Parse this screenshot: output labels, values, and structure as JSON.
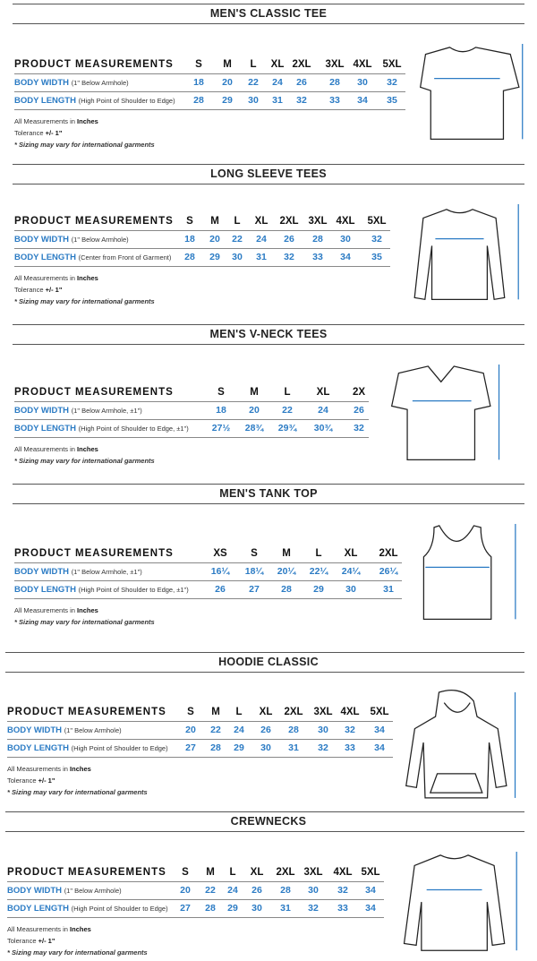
{
  "sections": [
    {
      "title": "MEN'S CLASSIC TEE",
      "garment": "tee-icon",
      "header": "PRODUCT MEASUREMENTS",
      "sizes": [
        "S",
        "M",
        "L",
        "XL",
        "2XL",
        "3XL",
        "4XL",
        "5XL"
      ],
      "rows": [
        {
          "label": "BODY WIDTH",
          "note": "(1\" Below Armhole)",
          "values": [
            "18",
            "20",
            "22",
            "24",
            "26",
            "28",
            "30",
            "32"
          ]
        },
        {
          "label": "BODY LENGTH",
          "note": "(High Point of Shoulder to Edge)",
          "values": [
            "28",
            "29",
            "30",
            "31",
            "32",
            "33",
            "34",
            "35"
          ]
        }
      ],
      "units_prefix": "All Measurements in",
      "units": "Inches",
      "tolerance_prefix": "Tolerance",
      "tolerance": "+/- 1\"",
      "disclaimer": "* Sizing may vary for international garments"
    },
    {
      "title": "LONG SLEEVE TEES",
      "garment": "long-sleeve-icon",
      "header": "PRODUCT MEASUREMENTS",
      "sizes": [
        "S",
        "M",
        "L",
        "XL",
        "2XL",
        "3XL",
        "4XL",
        "5XL"
      ],
      "rows": [
        {
          "label": "BODY WIDTH",
          "note": "(1\" Below Armhole)",
          "values": [
            "18",
            "20",
            "22",
            "24",
            "26",
            "28",
            "30",
            "32"
          ]
        },
        {
          "label": "BODY LENGTH",
          "note": "(Center from Front of Garment)",
          "values": [
            "28",
            "29",
            "30",
            "31",
            "32",
            "33",
            "34",
            "35"
          ]
        }
      ],
      "units_prefix": "All Measurements in",
      "units": "Inches",
      "tolerance_prefix": "Tolerance",
      "tolerance": "+/- 1\"",
      "disclaimer": "* Sizing may vary for international garments"
    },
    {
      "title": "MEN'S V-NECK TEES",
      "garment": "vneck-icon",
      "header": "PRODUCT MEASUREMENTS",
      "sizes": [
        "S",
        "M",
        "L",
        "XL",
        "2X"
      ],
      "rows": [
        {
          "label": "BODY WIDTH",
          "note": "(1\" Below Armhole, ±1\")",
          "values": [
            "18",
            "20",
            "22",
            "24",
            "26"
          ]
        },
        {
          "label": "BODY LENGTH",
          "note": "(High Point of Shoulder to Edge, ±1\")",
          "values": [
            "27½",
            "28¾",
            "29¾",
            "30¾",
            "32"
          ]
        }
      ],
      "units_prefix": "All Measurements in",
      "units": "Inches",
      "disclaimer": "* Sizing may vary for international garments"
    },
    {
      "title": "MEN'S TANK TOP",
      "garment": "tank-icon",
      "header": "PRODUCT MEASUREMENTS",
      "sizes": [
        "XS",
        "S",
        "M",
        "L",
        "XL",
        "2XL"
      ],
      "rows": [
        {
          "label": "BODY WIDTH",
          "note": "(1\" Below Armhole, ±1\")",
          "values": [
            "16¼",
            "18¼",
            "20¼",
            "22¼",
            "24¼",
            "26¼"
          ]
        },
        {
          "label": "BODY LENGTH",
          "note": "(High Point of Shoulder to Edge, ±1\")",
          "values": [
            "26",
            "27",
            "28",
            "29",
            "30",
            "31"
          ]
        }
      ],
      "units_prefix": "All Measurements in",
      "units": "Inches",
      "disclaimer": "* Sizing may vary for international garments"
    },
    {
      "title": "HOODIE CLASSIC",
      "garment": "hoodie-icon",
      "header": "PRODUCT MEASUREMENTS",
      "sizes": [
        "S",
        "M",
        "L",
        "XL",
        "2XL",
        "3XL",
        "4XL",
        "5XL"
      ],
      "rows": [
        {
          "label": "BODY WIDTH",
          "note": "(1\" Below Armhole)",
          "values": [
            "20",
            "22",
            "24",
            "26",
            "28",
            "30",
            "32",
            "34"
          ]
        },
        {
          "label": "BODY LENGTH",
          "note": "(High Point of Shoulder to Edge)",
          "values": [
            "27",
            "28",
            "29",
            "30",
            "31",
            "32",
            "33",
            "34"
          ]
        }
      ],
      "units_prefix": "All Measurements in",
      "units": "Inches",
      "tolerance_prefix": "Tolerance",
      "tolerance": "+/- 1\"",
      "disclaimer": "* Sizing may vary for international garments"
    },
    {
      "title": "CREWNECKS",
      "garment": "crewneck-icon",
      "header": "PRODUCT MEASUREMENTS",
      "sizes": [
        "S",
        "M",
        "L",
        "XL",
        "2XL",
        "3XL",
        "4XL",
        "5XL"
      ],
      "rows": [
        {
          "label": "BODY WIDTH",
          "note": "(1\" Below Armhole)",
          "values": [
            "20",
            "22",
            "24",
            "26",
            "28",
            "30",
            "32",
            "34"
          ]
        },
        {
          "label": "BODY LENGTH",
          "note": "(High Point of Shoulder to Edge)",
          "values": [
            "27",
            "28",
            "29",
            "30",
            "31",
            "32",
            "33",
            "34"
          ]
        }
      ],
      "units_prefix": "All Measurements in",
      "units": "Inches",
      "tolerance_prefix": "Tolerance",
      "tolerance": "+/- 1\"",
      "disclaimer": "* Sizing may vary for international garments"
    }
  ],
  "colors": {
    "label_blue": "#2b7bc4",
    "text": "#111111",
    "rule": "#555555"
  }
}
